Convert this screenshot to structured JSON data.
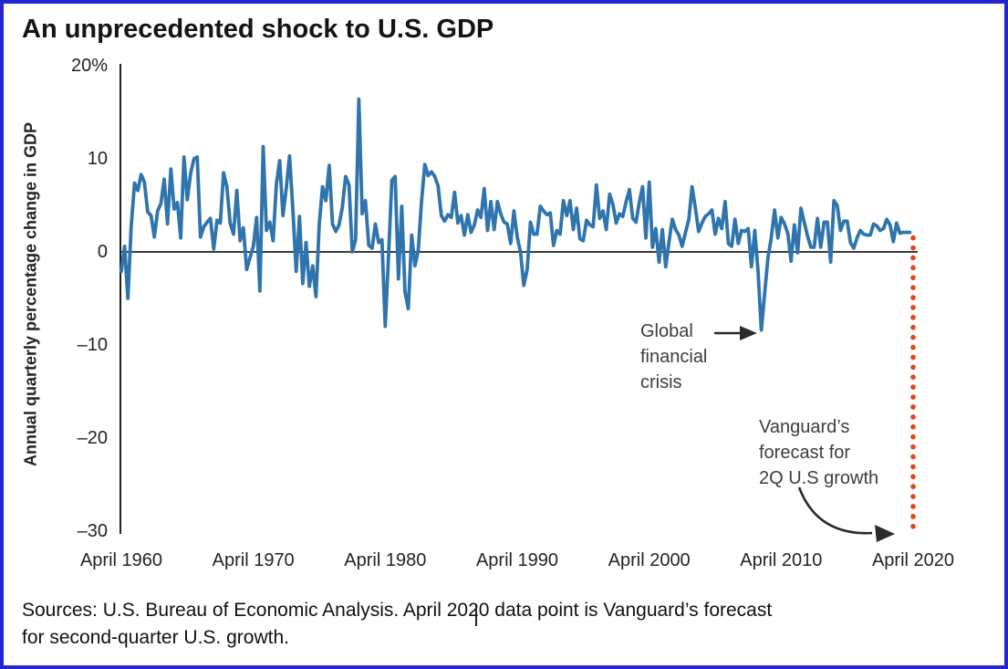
{
  "title": "An unprecedented shock to U.S. GDP",
  "footnote": "Sources: U.S. Bureau of Economic Analysis. April 2020 data point is Vanguard’s forecast\nfor second-quarter U.S. growth.",
  "annotations": {
    "global_financial_crisis": "Global\nfinancial\ncrisis",
    "vanguard_forecast": "Vanguard’s\nforecast for\n2Q U.S growth"
  },
  "colors": {
    "line": "#2f74ad",
    "forecast_dots": "#e8431c",
    "axis": "#1f1f1f",
    "frame_border": "#2424d0"
  },
  "chart_data": {
    "type": "line",
    "title": "An unprecedented shock to U.S. GDP",
    "xlabel": "",
    "ylabel": "Annual quarterly percentage change in GDP",
    "xlim": [
      1960.25,
      2020.25
    ],
    "ylim": [
      -30,
      20
    ],
    "grid": false,
    "legend": "none",
    "y_ticks": [
      {
        "label": "20%",
        "value": 20
      },
      {
        "label": "10",
        "value": 10
      },
      {
        "label": "0",
        "value": 0
      },
      {
        "label": "–10",
        "value": -10
      },
      {
        "label": "–20",
        "value": -20
      },
      {
        "label": "–30",
        "value": -30
      }
    ],
    "x_ticks": [
      {
        "label": "April 1960",
        "year": 1960.25
      },
      {
        "label": "April 1970",
        "year": 1970.25
      },
      {
        "label": "April 1980",
        "year": 1980.25
      },
      {
        "label": "April 1990",
        "year": 1990.25
      },
      {
        "label": "April 2000",
        "year": 2000.25
      },
      {
        "label": "April 2010",
        "year": 2010.25
      },
      {
        "label": "April 2020",
        "year": 2020.25
      }
    ],
    "x_start": 1960.25,
    "x_step": 0.25,
    "series": [
      {
        "name": "Annualized quarterly percentage change in U.S. GDP",
        "values": [
          -2.1,
          0.6,
          -5.0,
          2.7,
          7.4,
          6.6,
          8.3,
          7.5,
          4.3,
          3.9,
          1.6,
          4.4,
          5.2,
          7.8,
          3.0,
          8.9,
          4.6,
          5.3,
          1.5,
          10.2,
          5.6,
          8.4,
          10.0,
          10.2,
          1.6,
          2.7,
          3.2,
          3.6,
          0.3,
          3.4,
          3.1,
          8.5,
          7.0,
          3.1,
          1.9,
          6.6,
          1.2,
          2.6,
          -1.9,
          -0.6,
          0.6,
          3.7,
          -4.2,
          11.3,
          2.3,
          3.2,
          1.2,
          7.3,
          9.8,
          3.9,
          6.8,
          10.3,
          4.5,
          -2.1,
          3.8,
          -3.4,
          1.0,
          -3.7,
          -1.5,
          -4.8,
          3.0,
          7.0,
          5.5,
          9.3,
          3.0,
          2.2,
          2.9,
          4.8,
          8.1,
          7.2,
          0.0,
          1.3,
          16.4,
          4.1,
          5.5,
          0.7,
          0.4,
          3.0,
          1.0,
          1.3,
          -8.0,
          -0.5,
          7.7,
          8.1,
          -2.9,
          4.9,
          -4.3,
          -6.1,
          1.8,
          -1.5,
          0.2,
          5.4,
          9.4,
          8.2,
          8.6,
          8.1,
          7.1,
          3.9,
          3.3,
          4.0,
          3.7,
          6.4,
          3.1,
          3.9,
          1.8,
          4.0,
          2.1,
          2.9,
          4.5,
          3.7,
          6.8,
          2.3,
          5.4,
          2.4,
          5.4,
          4.1,
          3.2,
          3.0,
          0.9,
          4.4,
          1.6,
          0.0,
          -3.6,
          -1.9,
          3.2,
          1.9,
          1.9,
          4.9,
          4.4,
          4.0,
          4.2,
          0.7,
          2.3,
          1.9,
          5.5,
          3.9,
          5.5,
          2.4,
          4.7,
          1.4,
          1.2,
          3.4,
          2.9,
          2.7,
          7.2,
          3.6,
          4.4,
          2.4,
          6.2,
          5.1,
          3.1,
          4.1,
          3.8,
          5.4,
          6.7,
          3.6,
          3.2,
          5.3,
          7.0,
          1.5,
          7.5,
          0.5,
          2.5,
          -1.1,
          2.4,
          -1.6,
          1.1,
          3.5,
          2.4,
          1.8,
          0.6,
          2.1,
          3.5,
          7.0,
          4.7,
          2.2,
          3.1,
          3.8,
          4.1,
          4.5,
          1.9,
          3.6,
          2.5,
          5.4,
          0.9,
          0.6,
          3.5,
          0.9,
          2.3,
          2.2,
          2.5,
          -1.6,
          2.3,
          -2.1,
          -8.4,
          -4.4,
          -0.6,
          1.5,
          4.5,
          1.5,
          3.7,
          3.0,
          2.0,
          -1.0,
          2.9,
          -0.1,
          4.7,
          3.2,
          1.7,
          0.5,
          0.5,
          3.6,
          0.5,
          3.2,
          3.2,
          -1.1,
          5.5,
          5.0,
          2.3,
          3.3,
          3.3,
          1.0,
          0.4,
          1.5,
          2.3,
          1.9,
          1.8,
          1.8,
          3.0,
          2.8,
          2.3,
          2.5,
          3.5,
          2.9,
          1.1,
          3.1,
          2.0,
          2.1,
          2.1,
          2.1
        ]
      }
    ],
    "forecast_point": {
      "x": 2020.25,
      "y": -30,
      "style": "dotted-vertical-drop",
      "label": "Vanguard’s forecast for 2Q U.S growth"
    },
    "annotated_points": {
      "global_financial_crisis": {
        "x": 2009.0,
        "y": -8.4
      }
    }
  }
}
